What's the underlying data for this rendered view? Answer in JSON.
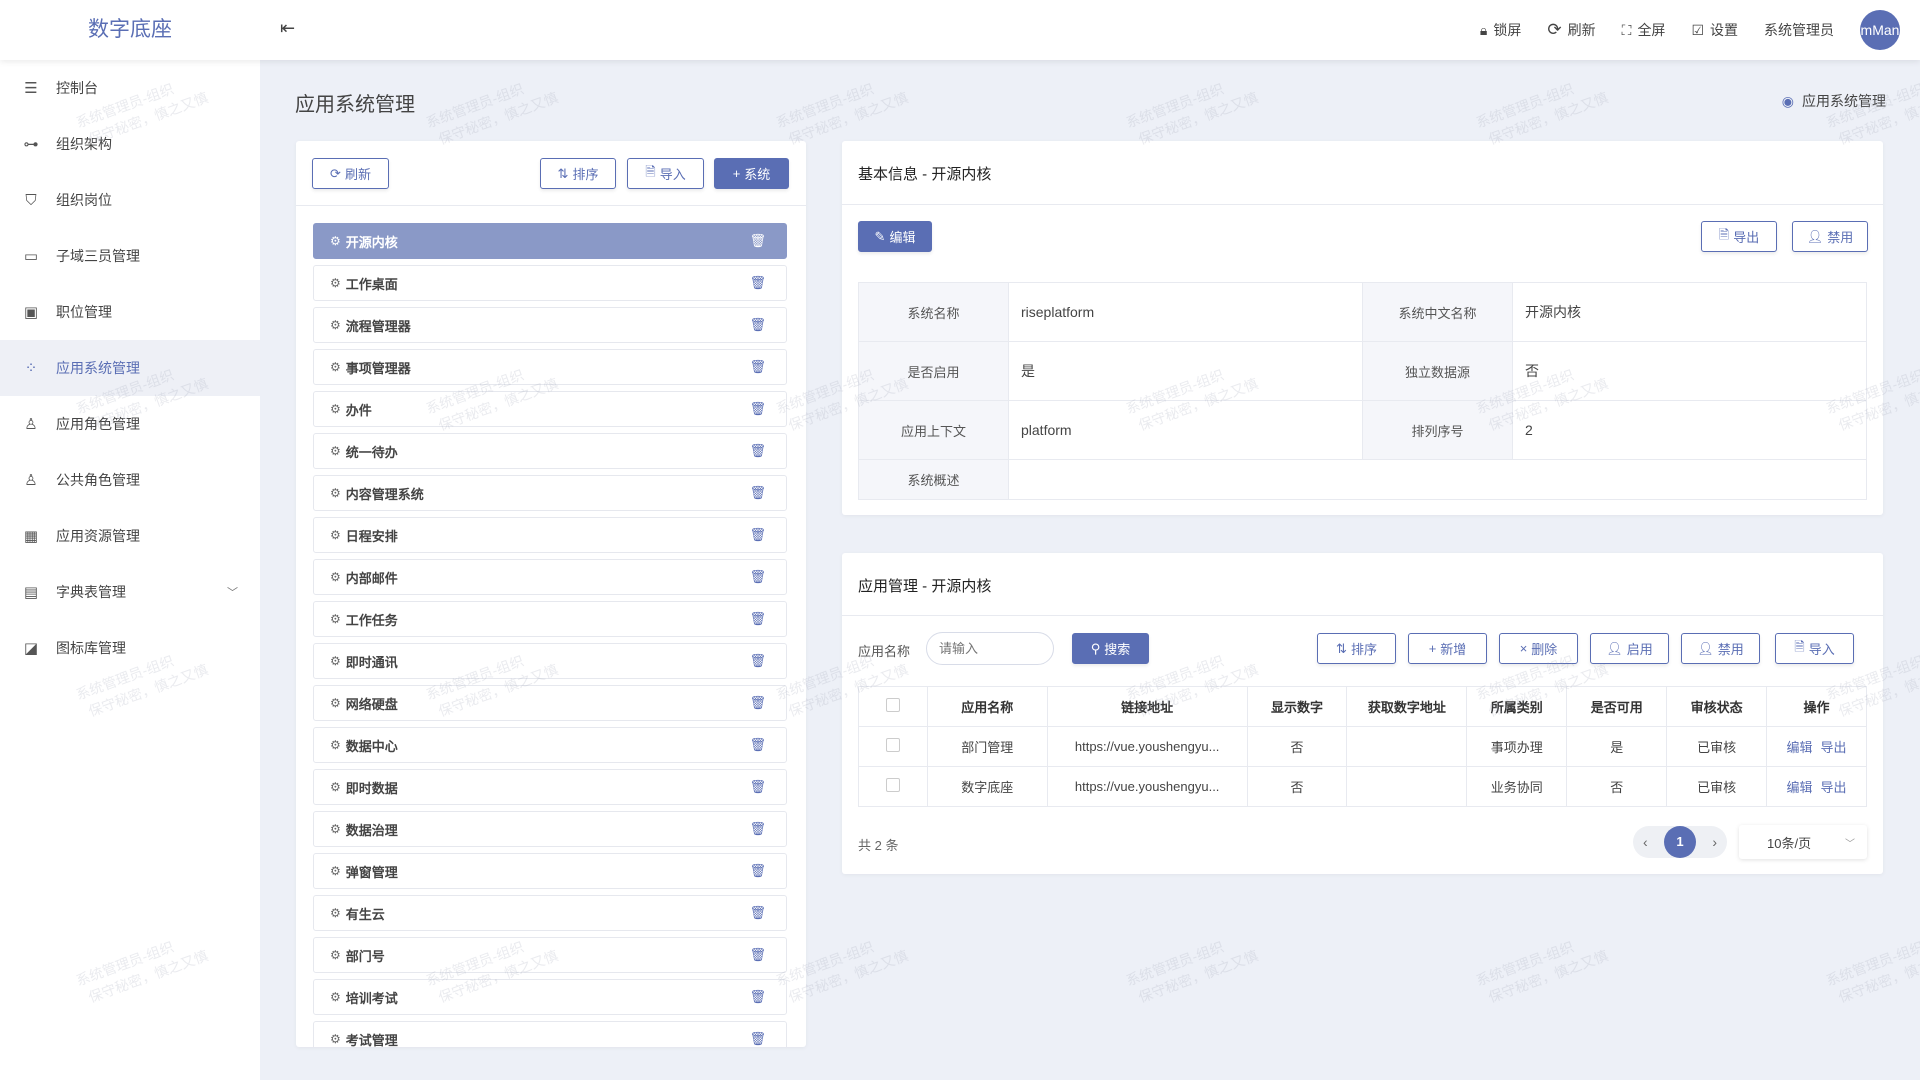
{
  "header": {
    "logo": "数字底座",
    "actions": [
      {
        "icon": "lock-icon",
        "label": "锁屏"
      },
      {
        "icon": "refresh-icon",
        "label": "刷新"
      },
      {
        "icon": "fullscreen-icon",
        "label": "全屏"
      },
      {
        "icon": "edit-settings-icon",
        "label": "设置"
      }
    ],
    "user": "系统管理员",
    "avatar": "mMan"
  },
  "sidebar": {
    "items": [
      {
        "label": "控制台",
        "icon": "sliders-icon"
      },
      {
        "label": "组织架构",
        "icon": "org-tree-icon"
      },
      {
        "label": "组织岗位",
        "icon": "shield-user-icon"
      },
      {
        "label": "子域三员管理",
        "icon": "window-icon"
      },
      {
        "label": "职位管理",
        "icon": "id-card-icon"
      },
      {
        "label": "应用系统管理",
        "icon": "apps-icon",
        "active": true
      },
      {
        "label": "应用角色管理",
        "icon": "user-list-icon"
      },
      {
        "label": "公共角色管理",
        "icon": "user-list-icon"
      },
      {
        "label": "应用资源管理",
        "icon": "grid-icon"
      },
      {
        "label": "字典表管理",
        "icon": "book-icon",
        "expandable": true
      },
      {
        "label": "图标库管理",
        "icon": "image-edit-icon"
      }
    ]
  },
  "page": {
    "title": "应用系统管理",
    "breadcrumb": "应用系统管理"
  },
  "left": {
    "buttons": {
      "refresh": "刷新",
      "sort": "排序",
      "import": "导入",
      "add": "系统"
    },
    "systems": [
      "开源内核",
      "工作桌面",
      "流程管理器",
      "事项管理器",
      "办件",
      "统一待办",
      "内容管理系统",
      "日程安排",
      "内部邮件",
      "工作任务",
      "即时通讯",
      "网络硬盘",
      "数据中心",
      "即时数据",
      "数据治理",
      "弹窗管理",
      "有生云",
      "部门号",
      "培训考试",
      "考试管理"
    ],
    "selected": "开源内核"
  },
  "info": {
    "title": "基本信息 - 开源内核",
    "edit": "编辑",
    "export": "导出",
    "disable": "禁用",
    "fields": {
      "name_label": "系统名称",
      "name": "riseplatform",
      "cn_label": "系统中文名称",
      "cn": "开源内核",
      "enabled_label": "是否启用",
      "enabled": "是",
      "ds_label": "独立数据源",
      "ds": "否",
      "ctx_label": "应用上下文",
      "ctx": "platform",
      "order_label": "排列序号",
      "order": "2",
      "desc_label": "系统概述",
      "desc": ""
    }
  },
  "apps": {
    "title": "应用管理 - 开源内核",
    "search_label": "应用名称",
    "search_placeholder": "请输入",
    "search_btn": "搜索",
    "buttons": {
      "sort": "排序",
      "add": "新增",
      "delete": "删除",
      "enable": "启用",
      "disable": "禁用",
      "import": "导入"
    },
    "columns": [
      "应用名称",
      "链接地址",
      "显示数字",
      "获取数字地址",
      "所属类别",
      "是否可用",
      "审核状态",
      "操作"
    ],
    "rows": [
      {
        "name": "部门管理",
        "url": "https://vue.youshengyu...",
        "show": "否",
        "numurl": "",
        "cat": "事项办理",
        "avail": "是",
        "status": "已审核"
      },
      {
        "name": "数字底座",
        "url": "https://vue.youshengyu...",
        "show": "否",
        "numurl": "",
        "cat": "业务协同",
        "avail": "否",
        "status": "已审核"
      }
    ],
    "row_actions": {
      "edit": "编辑",
      "export": "导出"
    },
    "total": "共 2 条",
    "page": "1",
    "page_size": "10条/页"
  },
  "watermark": {
    "line1": "系统管理员-组织",
    "line2": "保守秘密，慎之又慎"
  },
  "colors": {
    "primary": "#5a6eb4",
    "selected_item": "#8a99c7",
    "background": "#edf0f7"
  }
}
